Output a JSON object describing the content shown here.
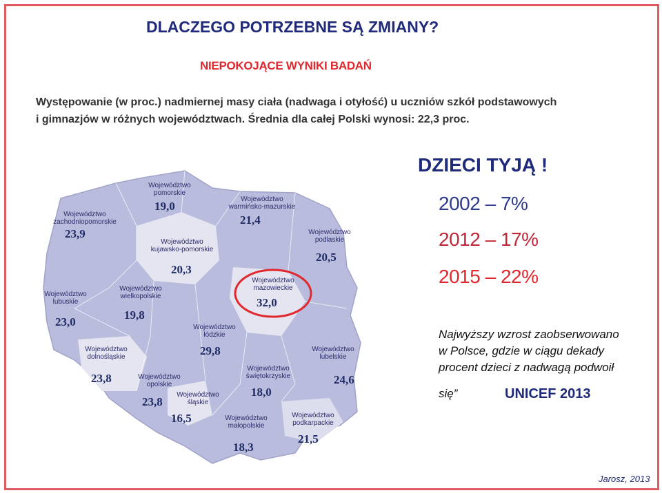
{
  "title": "DLACZEGO POTRZEBNE SĄ ZMIANY?",
  "subtitle": "NIEPOKOJĄCE WYNIKI BADAŃ",
  "caption_line1": "Występowanie (w proc.) nadmiernej masy ciała (nadwaga i otyłość) u uczniów szkół podstawowych",
  "caption_line2": "i gimnazjów w różnych województwach. Średnia dla całej Polski wynosi: 22,3 proc.",
  "regions": [
    {
      "name": "Województwo pomorskie",
      "value": "19,0"
    },
    {
      "name": "Województwo warmińsko-mazurskie",
      "value": "21,4"
    },
    {
      "name": "Województwo zachodniopomorskie",
      "value": "23,9"
    },
    {
      "name": "Województwo kujawsko-pomorskie",
      "value": "20,3"
    },
    {
      "name": "Województwo podlaskie",
      "value": "20,5"
    },
    {
      "name": "Województwo mazowieckie",
      "value": "32,0"
    },
    {
      "name": "Województwo lubuskie",
      "value": "23,0"
    },
    {
      "name": "Województwo wielkopolskie",
      "value": "19,8"
    },
    {
      "name": "Województwo łódzkie",
      "value": "29,8"
    },
    {
      "name": "Województwo dolnośląskie",
      "value": "23,8"
    },
    {
      "name": "Województwo opolskie",
      "value": "23,8"
    },
    {
      "name": "Województwo śląskie",
      "value": "16,5"
    },
    {
      "name": "Województwo świętokrzyskie",
      "value": "18,0"
    },
    {
      "name": "Województwo lubelskie",
      "value": "24,6"
    },
    {
      "name": "Województwo małopolskie",
      "value": "18,3"
    },
    {
      "name": "Województwo podkarpackie",
      "value": "21,5"
    }
  ],
  "headline": "DZIECI TYJĄ !",
  "stats": [
    {
      "year": "2002",
      "dash": "–",
      "value": "7%",
      "color": "#2e3a8c"
    },
    {
      "year": "2012",
      "dash": "–",
      "value": "17%",
      "color": "#c0283a"
    },
    {
      "year": "2015",
      "dash": "–",
      "value": "22%",
      "color": "#e0282e"
    }
  ],
  "note_line1": "Najwyższy wzrost zaobserwowano",
  "note_line2": "w Polsce, gdzie w ciągu dekady",
  "note_line3": "procent dzieci z nadwagą podwoił",
  "note_line4": "się”",
  "source": "UNICEF 2013",
  "author": "Jarosz, 2013",
  "colors": {
    "frame": "#e05a5f",
    "map_fill": "#b9bcdc",
    "map_light": "#e4e5f1",
    "highlight": "#e0282e"
  }
}
